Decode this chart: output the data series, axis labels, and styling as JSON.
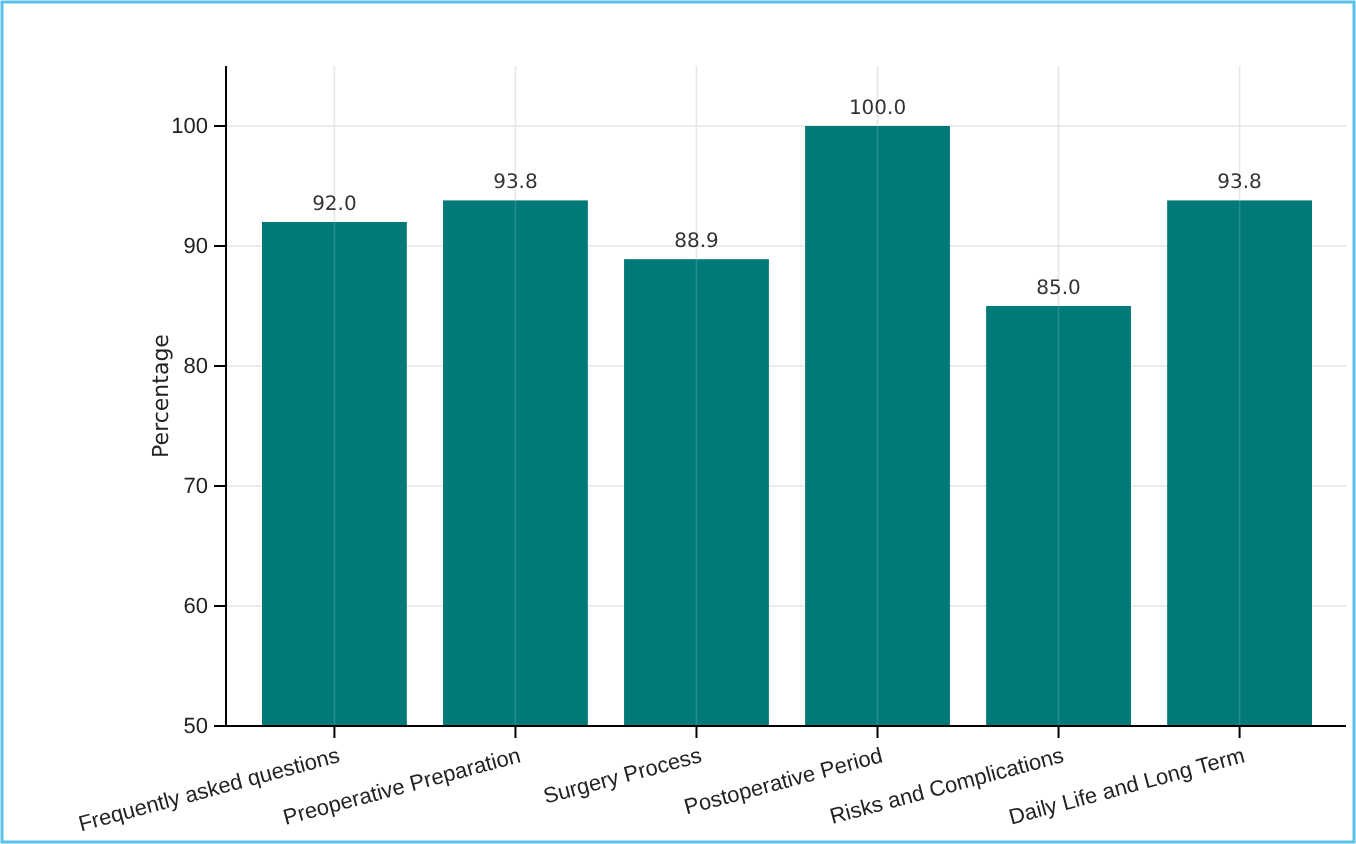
{
  "chart_data": {
    "type": "bar",
    "ylabel": "Percentage",
    "categories": [
      "Frequently asked questions",
      "Preoperative Preparation",
      "Surgery Process",
      "Postoperative Period",
      "Risks and Complications",
      "Daily Life and Long Term"
    ],
    "values": [
      92.0,
      93.8,
      88.9,
      100.0,
      85.0,
      93.8
    ],
    "value_labels": [
      "92.0",
      "93.8",
      "88.9",
      "100.0",
      "85.0",
      "93.8"
    ],
    "color": "#007a78",
    "ylim": [
      50,
      105
    ],
    "yticks": [
      50,
      60,
      70,
      80,
      90,
      100
    ],
    "grid": true
  }
}
